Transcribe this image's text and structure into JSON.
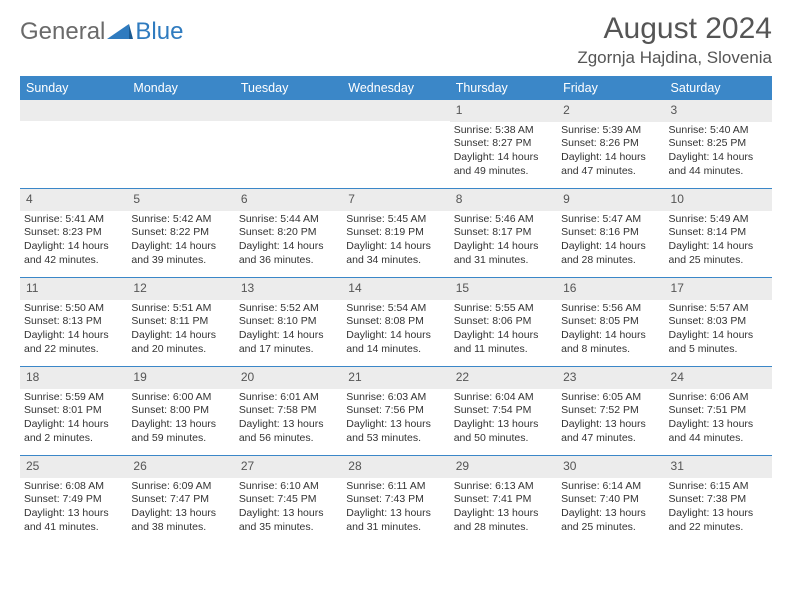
{
  "logo": {
    "text1": "General",
    "text2": "Blue"
  },
  "header": {
    "title": "August 2024",
    "location": "Zgornja Hajdina, Slovenia"
  },
  "colors": {
    "header_bar": "#3b87c8",
    "daynum_bg": "#ececec",
    "border": "#3b87c8",
    "text": "#333333",
    "title_text": "#555555"
  },
  "day_names": [
    "Sunday",
    "Monday",
    "Tuesday",
    "Wednesday",
    "Thursday",
    "Friday",
    "Saturday"
  ],
  "weeks": [
    [
      null,
      null,
      null,
      null,
      {
        "n": "1",
        "sunrise": "5:38 AM",
        "sunset": "8:27 PM",
        "daylight": "14 hours and 49 minutes."
      },
      {
        "n": "2",
        "sunrise": "5:39 AM",
        "sunset": "8:26 PM",
        "daylight": "14 hours and 47 minutes."
      },
      {
        "n": "3",
        "sunrise": "5:40 AM",
        "sunset": "8:25 PM",
        "daylight": "14 hours and 44 minutes."
      }
    ],
    [
      {
        "n": "4",
        "sunrise": "5:41 AM",
        "sunset": "8:23 PM",
        "daylight": "14 hours and 42 minutes."
      },
      {
        "n": "5",
        "sunrise": "5:42 AM",
        "sunset": "8:22 PM",
        "daylight": "14 hours and 39 minutes."
      },
      {
        "n": "6",
        "sunrise": "5:44 AM",
        "sunset": "8:20 PM",
        "daylight": "14 hours and 36 minutes."
      },
      {
        "n": "7",
        "sunrise": "5:45 AM",
        "sunset": "8:19 PM",
        "daylight": "14 hours and 34 minutes."
      },
      {
        "n": "8",
        "sunrise": "5:46 AM",
        "sunset": "8:17 PM",
        "daylight": "14 hours and 31 minutes."
      },
      {
        "n": "9",
        "sunrise": "5:47 AM",
        "sunset": "8:16 PM",
        "daylight": "14 hours and 28 minutes."
      },
      {
        "n": "10",
        "sunrise": "5:49 AM",
        "sunset": "8:14 PM",
        "daylight": "14 hours and 25 minutes."
      }
    ],
    [
      {
        "n": "11",
        "sunrise": "5:50 AM",
        "sunset": "8:13 PM",
        "daylight": "14 hours and 22 minutes."
      },
      {
        "n": "12",
        "sunrise": "5:51 AM",
        "sunset": "8:11 PM",
        "daylight": "14 hours and 20 minutes."
      },
      {
        "n": "13",
        "sunrise": "5:52 AM",
        "sunset": "8:10 PM",
        "daylight": "14 hours and 17 minutes."
      },
      {
        "n": "14",
        "sunrise": "5:54 AM",
        "sunset": "8:08 PM",
        "daylight": "14 hours and 14 minutes."
      },
      {
        "n": "15",
        "sunrise": "5:55 AM",
        "sunset": "8:06 PM",
        "daylight": "14 hours and 11 minutes."
      },
      {
        "n": "16",
        "sunrise": "5:56 AM",
        "sunset": "8:05 PM",
        "daylight": "14 hours and 8 minutes."
      },
      {
        "n": "17",
        "sunrise": "5:57 AM",
        "sunset": "8:03 PM",
        "daylight": "14 hours and 5 minutes."
      }
    ],
    [
      {
        "n": "18",
        "sunrise": "5:59 AM",
        "sunset": "8:01 PM",
        "daylight": "14 hours and 2 minutes."
      },
      {
        "n": "19",
        "sunrise": "6:00 AM",
        "sunset": "8:00 PM",
        "daylight": "13 hours and 59 minutes."
      },
      {
        "n": "20",
        "sunrise": "6:01 AM",
        "sunset": "7:58 PM",
        "daylight": "13 hours and 56 minutes."
      },
      {
        "n": "21",
        "sunrise": "6:03 AM",
        "sunset": "7:56 PM",
        "daylight": "13 hours and 53 minutes."
      },
      {
        "n": "22",
        "sunrise": "6:04 AM",
        "sunset": "7:54 PM",
        "daylight": "13 hours and 50 minutes."
      },
      {
        "n": "23",
        "sunrise": "6:05 AM",
        "sunset": "7:52 PM",
        "daylight": "13 hours and 47 minutes."
      },
      {
        "n": "24",
        "sunrise": "6:06 AM",
        "sunset": "7:51 PM",
        "daylight": "13 hours and 44 minutes."
      }
    ],
    [
      {
        "n": "25",
        "sunrise": "6:08 AM",
        "sunset": "7:49 PM",
        "daylight": "13 hours and 41 minutes."
      },
      {
        "n": "26",
        "sunrise": "6:09 AM",
        "sunset": "7:47 PM",
        "daylight": "13 hours and 38 minutes."
      },
      {
        "n": "27",
        "sunrise": "6:10 AM",
        "sunset": "7:45 PM",
        "daylight": "13 hours and 35 minutes."
      },
      {
        "n": "28",
        "sunrise": "6:11 AM",
        "sunset": "7:43 PM",
        "daylight": "13 hours and 31 minutes."
      },
      {
        "n": "29",
        "sunrise": "6:13 AM",
        "sunset": "7:41 PM",
        "daylight": "13 hours and 28 minutes."
      },
      {
        "n": "30",
        "sunrise": "6:14 AM",
        "sunset": "7:40 PM",
        "daylight": "13 hours and 25 minutes."
      },
      {
        "n": "31",
        "sunrise": "6:15 AM",
        "sunset": "7:38 PM",
        "daylight": "13 hours and 22 minutes."
      }
    ]
  ],
  "labels": {
    "sunrise": "Sunrise: ",
    "sunset": "Sunset: ",
    "daylight": "Daylight: "
  }
}
